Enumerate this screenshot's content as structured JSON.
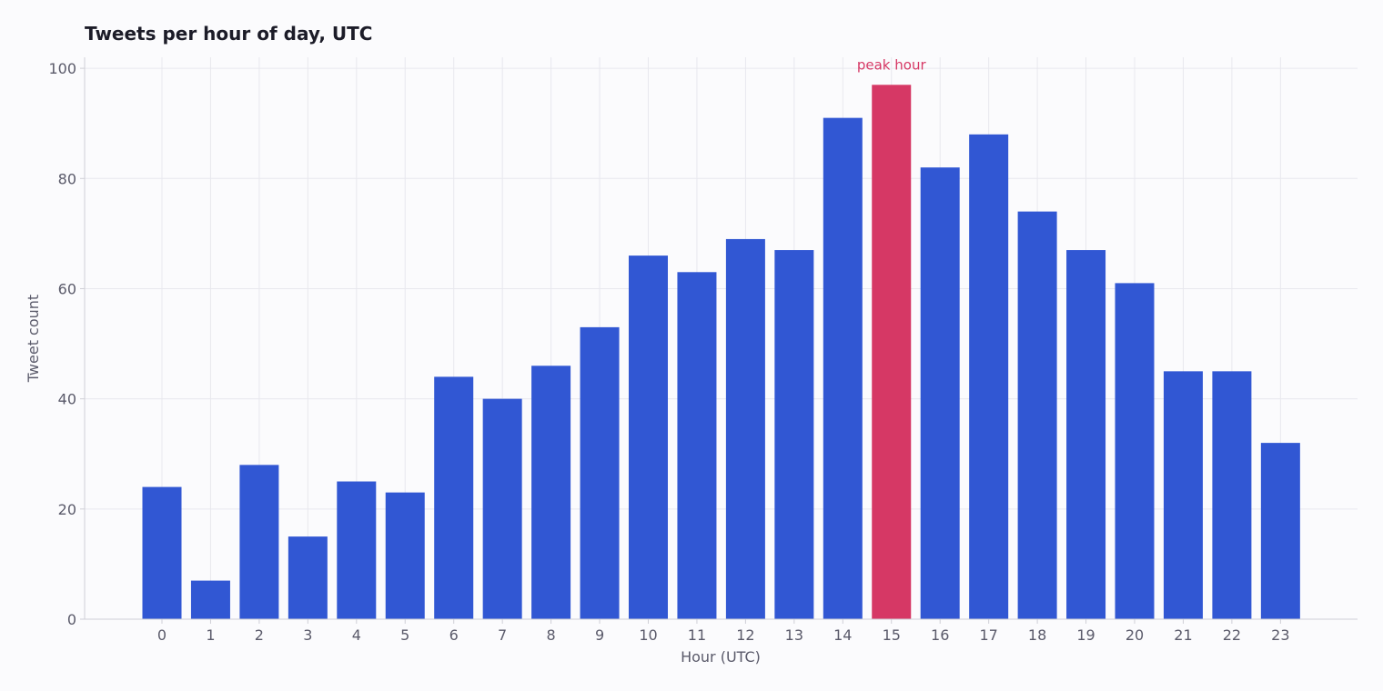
{
  "chart_data": {
    "type": "bar",
    "title": "Tweets per hour of day, UTC",
    "xlabel": "Hour (UTC)",
    "ylabel": "Tweet count",
    "categories": [
      "0",
      "1",
      "2",
      "3",
      "4",
      "5",
      "6",
      "7",
      "8",
      "9",
      "10",
      "11",
      "12",
      "13",
      "14",
      "15",
      "16",
      "17",
      "18",
      "19",
      "20",
      "21",
      "22",
      "23"
    ],
    "values": [
      24,
      7,
      28,
      15,
      25,
      23,
      44,
      40,
      46,
      53,
      66,
      63,
      69,
      67,
      91,
      97,
      82,
      88,
      74,
      67,
      61,
      45,
      45,
      32
    ],
    "ylim": [
      0,
      102
    ],
    "yticks": [
      0,
      20,
      40,
      60,
      80,
      100
    ],
    "grid": true,
    "highlight": {
      "category": "15",
      "label": "peak hour"
    },
    "colors": {
      "bar": "#3157d3",
      "highlight": "#d63865"
    }
  }
}
